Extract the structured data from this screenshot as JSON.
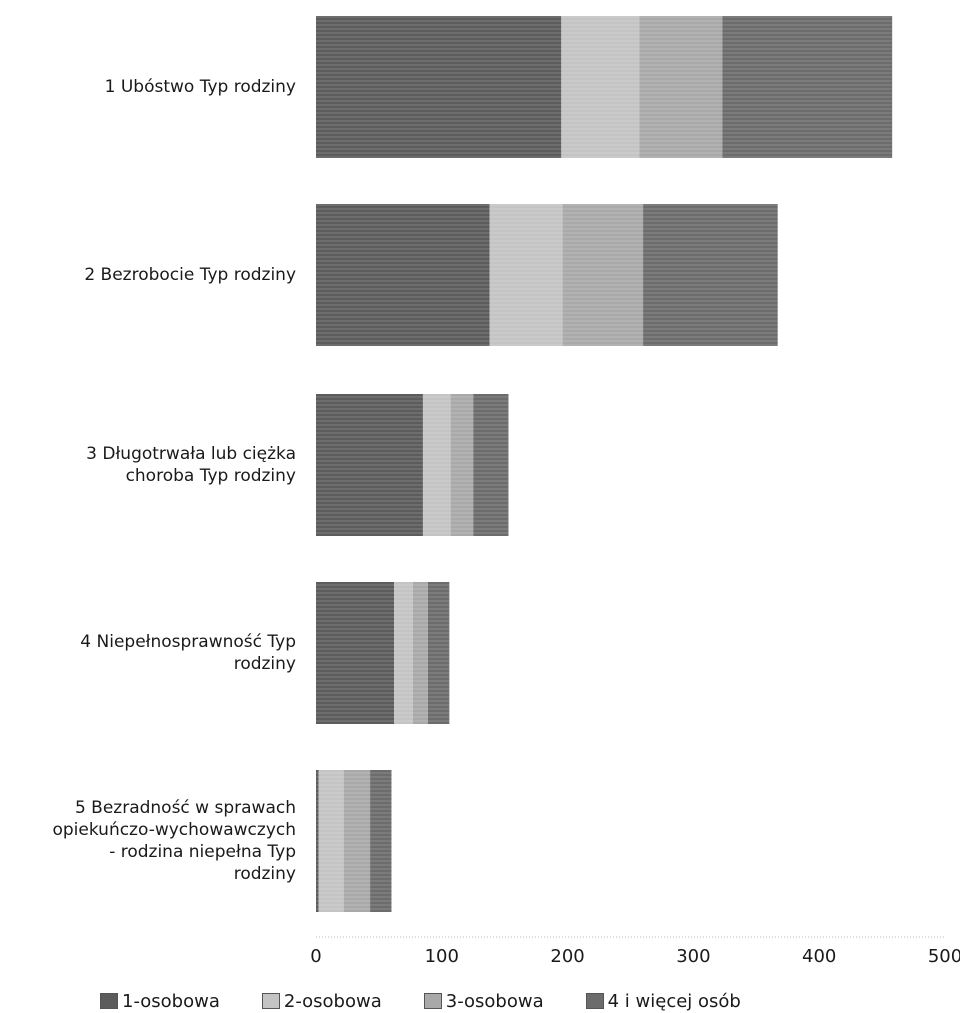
{
  "chart_data": {
    "type": "bar",
    "orientation": "horizontal",
    "stacked": true,
    "title": "",
    "xlabel": "",
    "ylabel": "",
    "categories": [
      "1 Ubóstwo Typ rodziny",
      "2 Bezrobocie Typ rodziny",
      "3 Długotrwała lub ciężka\nchoroba Typ rodziny",
      "4 Niepełnosprawność Typ\nrodziny",
      "5 Bezradność w sprawach\nopiekuńczo-wychowawczych\n- rodzina niepełna Typ\nrodziny"
    ],
    "series": [
      {
        "name": "1-osobowa",
        "color": "#5c5c5c",
        "values": [
          195,
          138,
          85,
          62,
          2
        ]
      },
      {
        "name": "2-osobowa",
        "color": "#c4c4c4",
        "values": [
          62,
          58,
          22,
          15,
          20
        ]
      },
      {
        "name": "3-osobowa",
        "color": "#a9a9a9",
        "values": [
          66,
          64,
          18,
          12,
          21
        ]
      },
      {
        "name": "4  i więcej osób",
        "color": "#6c6c6c",
        "values": [
          135,
          107,
          28,
          17,
          17
        ]
      }
    ],
    "xlim": [
      0,
      500
    ],
    "xticks": [
      "0",
      "100",
      "200",
      "300",
      "400",
      "500"
    ],
    "grid": false,
    "legend_position": "bottom"
  }
}
